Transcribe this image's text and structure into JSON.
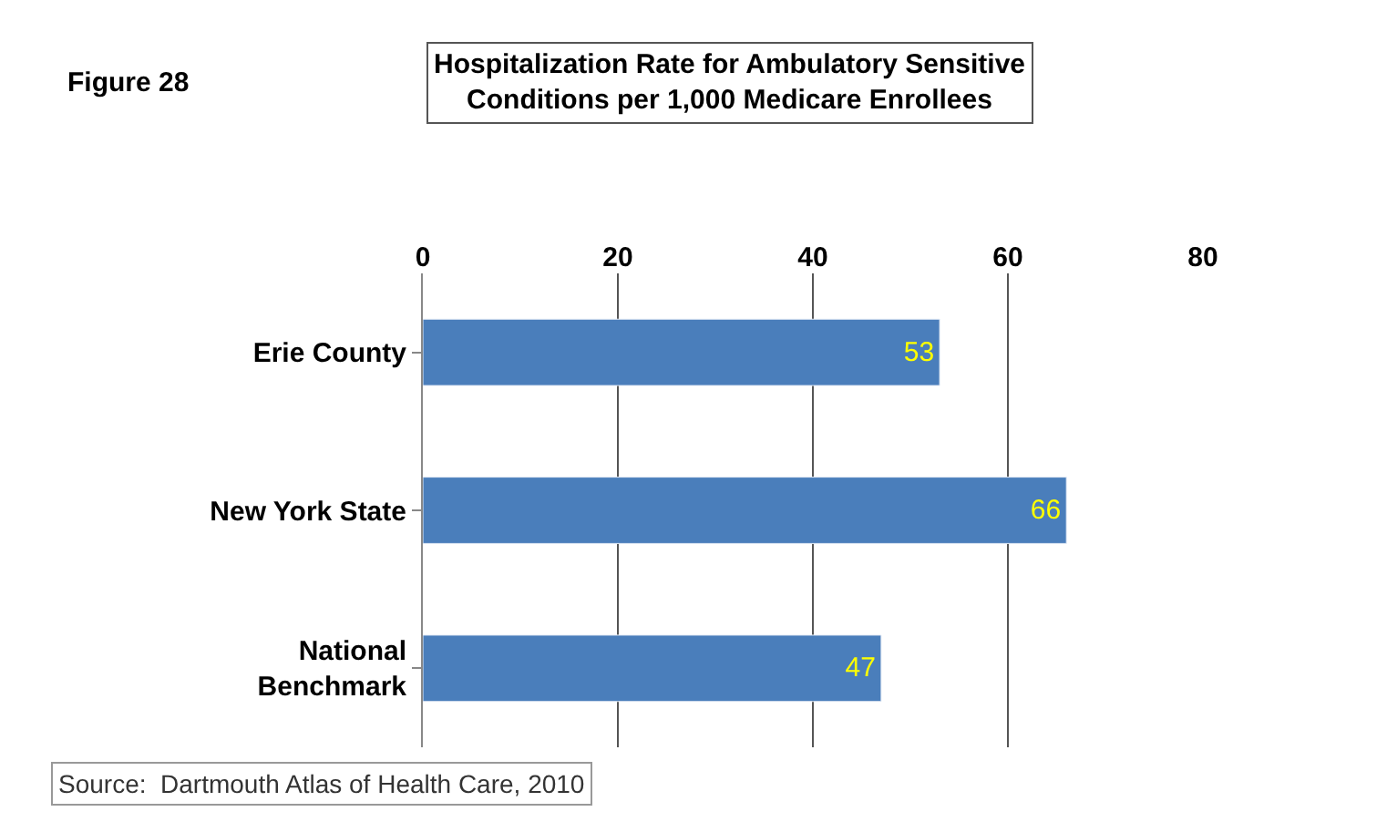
{
  "chart_data": {
    "type": "bar",
    "orientation": "horizontal",
    "title": "Hospitalization Rate for Ambulatory Sensitive Conditions per 1,000 Medicare Enrollees",
    "categories": [
      "Erie County",
      "New York State",
      "National Benchmark"
    ],
    "values": [
      53,
      66,
      47
    ],
    "color": "#4a7ebb",
    "data_labels": true,
    "xlim": [
      0,
      80
    ],
    "xticks": [
      0,
      20,
      40,
      60,
      80
    ],
    "grid": "x",
    "annotations": [
      "Figure 28",
      "Source:  Dartmouth Atlas of Health Care, 2010"
    ]
  }
}
